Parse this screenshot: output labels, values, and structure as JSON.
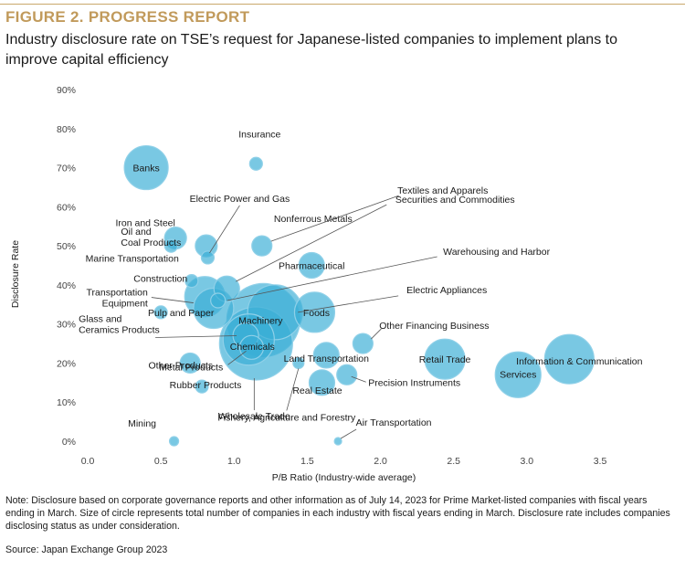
{
  "figure_title": "FIGURE 2. PROGRESS REPORT",
  "subtitle": "Industry disclosure rate on TSE’s request for Japanese-listed companies to implement plans to improve capital efficiency",
  "note": "Note: Disclosure based on corporate governance reports and other information as of July 14, 2023 for Prime Market-listed companies with fiscal years ending in March. Size of circle represents total number of companies in each industry with fiscal years ending in March. Disclosure rate includes companies disclosing status as under consideration.",
  "source": "Source: Japan Exchange Group 2023",
  "colors": {
    "bubble_fill": "#3aaed6",
    "bubble_stroke": "#8fd0e8",
    "title_gold": "#c19a5b"
  },
  "chart_data": {
    "type": "scatter",
    "xlabel": "P/B Ratio (Industry-wide average)",
    "ylabel": "Disclosure Rate",
    "xlim": [
      0,
      3.5
    ],
    "ylim": [
      0,
      90
    ],
    "x_ticks": [
      "0.0",
      "0.5",
      "1.0",
      "1.5",
      "2.0",
      "2.5",
      "3.0",
      "3.5"
    ],
    "y_ticks": [
      "0%",
      "10%",
      "20%",
      "30%",
      "40%",
      "50%",
      "60%",
      "70%",
      "80%",
      "90%"
    ],
    "grid": false,
    "size_meaning": "relative number of companies",
    "points": [
      {
        "name": "Banks",
        "x": 0.4,
        "y": 70,
        "size": 24
      },
      {
        "name": "Insurance",
        "x": 1.15,
        "y": 71,
        "size": 7
      },
      {
        "name": "Iron and Steel",
        "x": 0.6,
        "y": 52,
        "size": 12
      },
      {
        "name": "Oil and Coal Products",
        "x": 0.57,
        "y": 50,
        "size": 7
      },
      {
        "name": "Nonferrous Metals",
        "x": 0.81,
        "y": 50,
        "size": 12
      },
      {
        "name": "Electric Power and Gas",
        "x": 0.82,
        "y": 47,
        "size": 7
      },
      {
        "name": "Textiles and Apparels",
        "x": 1.19,
        "y": 50,
        "size": 11
      },
      {
        "name": "Pharmaceutical",
        "x": 1.53,
        "y": 45,
        "size": 14
      },
      {
        "name": "Marine Transportation",
        "x": 0.71,
        "y": 41,
        "size": 7
      },
      {
        "name": "Construction",
        "x": 0.8,
        "y": 37,
        "size": 22
      },
      {
        "name": "Transportation Equipment",
        "x": 0.86,
        "y": 34,
        "size": 22
      },
      {
        "name": "Securities and Commodities",
        "x": 0.95,
        "y": 39,
        "size": 14
      },
      {
        "name": "Warehousing and Harbor",
        "x": 0.89,
        "y": 36,
        "size": 8
      },
      {
        "name": "Pulp and Paper",
        "x": 0.5,
        "y": 33,
        "size": 7
      },
      {
        "name": "Machinery",
        "x": 1.2,
        "y": 31,
        "size": 40
      },
      {
        "name": "Foods",
        "x": 1.55,
        "y": 33,
        "size": 22
      },
      {
        "name": "Electric Appliances",
        "x": 1.28,
        "y": 33,
        "size": 30
      },
      {
        "name": "Other Financing Business",
        "x": 1.88,
        "y": 25,
        "size": 11
      },
      {
        "name": "Glass and Ceramics Products",
        "x": 1.08,
        "y": 27,
        "size": 14
      },
      {
        "name": "Other Products",
        "x": 1.12,
        "y": 24,
        "size": 13
      },
      {
        "name": "Chemicals",
        "x": 1.1,
        "y": 26,
        "size": 28
      },
      {
        "name": "Metal Products",
        "x": 0.7,
        "y": 20,
        "size": 11
      },
      {
        "name": "Rubber Products",
        "x": 0.78,
        "y": 14,
        "size": 7
      },
      {
        "name": "Land Transportation",
        "x": 1.63,
        "y": 22,
        "size": 14
      },
      {
        "name": "Real Estate",
        "x": 1.6,
        "y": 15,
        "size": 14
      },
      {
        "name": "Precision Instruments",
        "x": 1.77,
        "y": 17,
        "size": 11
      },
      {
        "name": "Wholesale Trade",
        "x": 1.15,
        "y": 25,
        "size": 40
      },
      {
        "name": "Fishery, Agriculture and Forestry",
        "x": 1.44,
        "y": 20,
        "size": 6
      },
      {
        "name": "Retail Trade",
        "x": 2.44,
        "y": 21,
        "size": 22
      },
      {
        "name": "Services",
        "x": 2.94,
        "y": 17,
        "size": 25
      },
      {
        "name": "Information & Communication",
        "x": 3.29,
        "y": 21,
        "size": 27
      },
      {
        "name": "Mining",
        "x": 0.59,
        "y": 0,
        "size": 5
      },
      {
        "name": "Air Transportation",
        "x": 1.71,
        "y": 0,
        "size": 4
      }
    ]
  }
}
